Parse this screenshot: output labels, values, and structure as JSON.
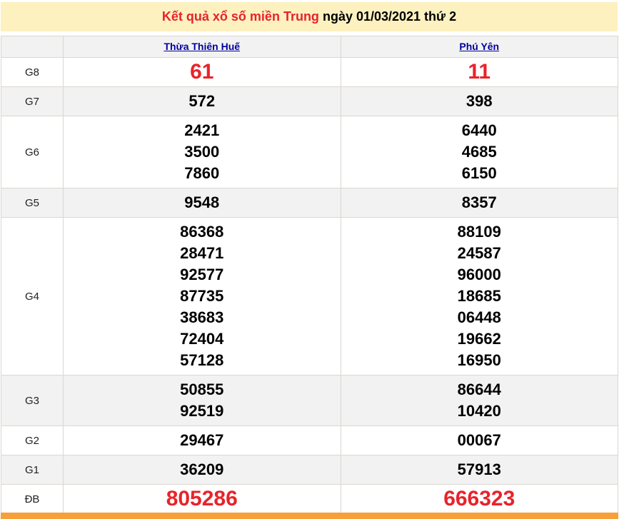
{
  "title": {
    "prefix": "Kết quả xổ số miền Trung",
    "suffix": "ngày 01/03/2021 thứ 2"
  },
  "provinces": [
    "Thừa Thiên Huế",
    "Phú Yên"
  ],
  "prizes": [
    {
      "label": "G8",
      "special": true,
      "values": [
        [
          "61"
        ],
        [
          "11"
        ]
      ]
    },
    {
      "label": "G7",
      "values": [
        [
          "572"
        ],
        [
          "398"
        ]
      ]
    },
    {
      "label": "G6",
      "values": [
        [
          "2421",
          "3500",
          "7860"
        ],
        [
          "6440",
          "4685",
          "6150"
        ]
      ]
    },
    {
      "label": "G5",
      "values": [
        [
          "9548"
        ],
        [
          "8357"
        ]
      ]
    },
    {
      "label": "G4",
      "values": [
        [
          "86368",
          "28471",
          "92577",
          "87735",
          "38683",
          "72404",
          "57128"
        ],
        [
          "88109",
          "24587",
          "96000",
          "18685",
          "06448",
          "19662",
          "16950"
        ]
      ]
    },
    {
      "label": "G3",
      "values": [
        [
          "50855",
          "92519"
        ],
        [
          "86644",
          "10420"
        ]
      ]
    },
    {
      "label": "G2",
      "values": [
        [
          "29467"
        ],
        [
          "00067"
        ]
      ]
    },
    {
      "label": "G1",
      "values": [
        [
          "36209"
        ],
        [
          "57913"
        ]
      ]
    },
    {
      "label": "ĐB",
      "special": true,
      "values": [
        [
          "805286"
        ],
        [
          "666323"
        ]
      ]
    }
  ],
  "colors": {
    "accent": "#e8232a",
    "title_bg": "#fdf1c0",
    "bottom_bar": "#f7a03a",
    "link": "#0000a0"
  }
}
